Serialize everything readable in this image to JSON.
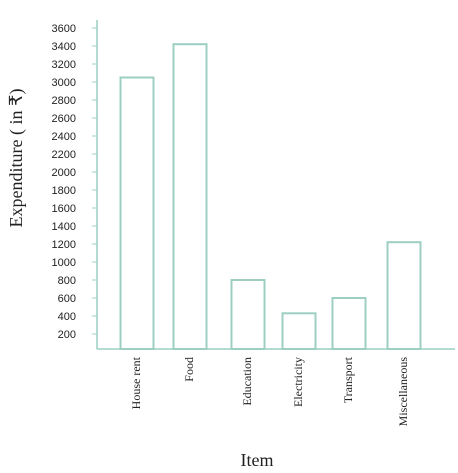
{
  "chart_data": {
    "type": "bar",
    "title": "",
    "xlabel": "Item",
    "ylabel": "Expenditure ( in ₹)",
    "categories": [
      "House rent",
      "Food",
      "Education",
      "Electricity",
      "Transport",
      "Miscellaneous"
    ],
    "values": [
      3050,
      3420,
      800,
      430,
      600,
      1220
    ],
    "yticks": [
      200,
      400,
      600,
      800,
      1000,
      1200,
      1400,
      1600,
      1800,
      2000,
      2200,
      2400,
      2600,
      2800,
      3000,
      3200,
      3400,
      3600
    ],
    "ylim": [
      0,
      3600
    ],
    "grid": false,
    "colors": {
      "bar_stroke": "#9ccfc2",
      "axis": "#9ccfc2",
      "bar_fill": "#ffffff"
    }
  }
}
